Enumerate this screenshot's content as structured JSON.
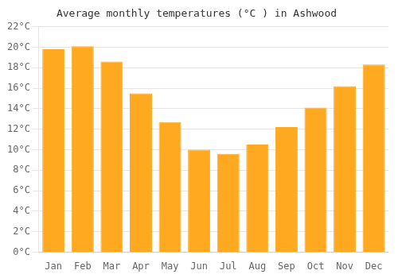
{
  "chart_data": {
    "type": "bar",
    "title": "Average monthly temperatures (°C ) in Ashwood",
    "categories": [
      "Jan",
      "Feb",
      "Mar",
      "Apr",
      "May",
      "Jun",
      "Jul",
      "Aug",
      "Sep",
      "Oct",
      "Nov",
      "Dec"
    ],
    "values": [
      19.8,
      20.1,
      18.6,
      15.5,
      12.7,
      10.0,
      9.6,
      10.5,
      12.2,
      14.1,
      16.2,
      18.3
    ],
    "color": "#FFA920",
    "ylim": [
      0,
      22
    ],
    "yticks": [
      {
        "value": 0,
        "label": "0°C"
      },
      {
        "value": 2,
        "label": "2°C"
      },
      {
        "value": 4,
        "label": "4°C"
      },
      {
        "value": 6,
        "label": "6°C"
      },
      {
        "value": 8,
        "label": "8°C"
      },
      {
        "value": 10,
        "label": "10°C"
      },
      {
        "value": 12,
        "label": "12°C"
      },
      {
        "value": 14,
        "label": "14°C"
      },
      {
        "value": 16,
        "label": "16°C"
      },
      {
        "value": 18,
        "label": "18°C"
      },
      {
        "value": 20,
        "label": "20°C"
      },
      {
        "value": 22,
        "label": "22°C"
      }
    ],
    "grid": true
  }
}
